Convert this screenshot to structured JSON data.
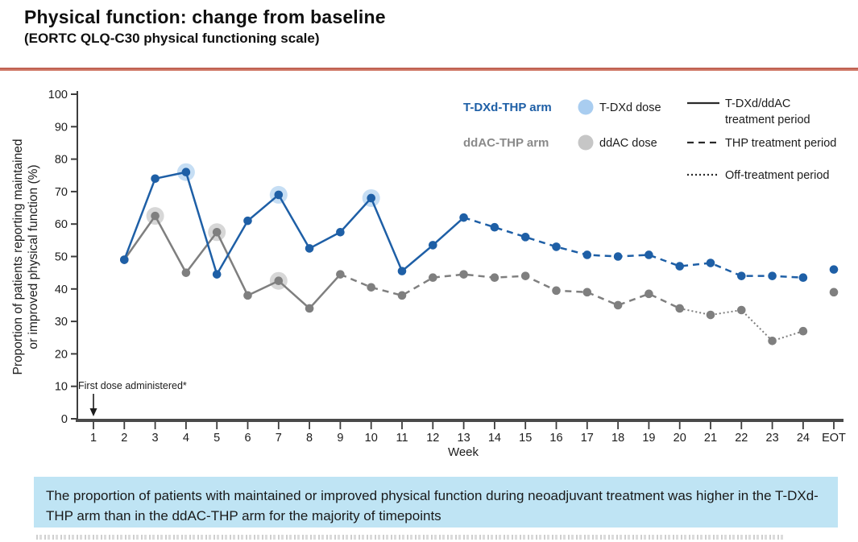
{
  "slide": {
    "title": "Physical function: change from baseline",
    "subtitle": "(EORTC QLQ-C30 physical functioning scale)",
    "accent_line_color": "#c05a49"
  },
  "legend": {
    "arms": [
      {
        "label": "T-DXd-THP arm",
        "color": "#1e5fa6",
        "dose_label": "T-DXd dose",
        "dose_color": "#a9cdf0"
      },
      {
        "label": "ddAC-THP arm",
        "color": "#8a8a8a",
        "dose_label": "ddAC dose",
        "dose_color": "#c6c6c6"
      }
    ],
    "periods": [
      {
        "style": "solid",
        "lines": [
          "T-DXd/ddAC",
          "treatment period"
        ]
      },
      {
        "style": "dashed",
        "lines": [
          "THP treatment period"
        ]
      },
      {
        "style": "dotted",
        "lines": [
          "Off-treatment period"
        ]
      }
    ]
  },
  "annotation": {
    "text": "First dose administered*",
    "week": 1
  },
  "summary_box": {
    "text": "The proportion of patients with maintained or improved physical function during neoadjuvant treatment was higher in the T-DXd-THP arm than in the ddAC-THP arm for the majority of timepoints",
    "background": "#bfe4f4"
  },
  "chart_data": {
    "type": "line",
    "xlabel": "Week",
    "ylabel": "Proportion of patients reporting maintained or improved physical function (%)",
    "ylabel_lines": [
      "Proportion of patients reporting maintained",
      "or improved physical function (%)"
    ],
    "ylim": [
      0,
      100
    ],
    "yticks": [
      0,
      10,
      20,
      30,
      40,
      50,
      60,
      70,
      80,
      90,
      100
    ],
    "x_categories": [
      "1",
      "2",
      "3",
      "4",
      "5",
      "6",
      "7",
      "8",
      "9",
      "10",
      "11",
      "12",
      "13",
      "14",
      "15",
      "16",
      "17",
      "18",
      "19",
      "20",
      "21",
      "22",
      "23",
      "24",
      "EOT"
    ],
    "series": [
      {
        "name": "T-DXd-THP arm",
        "color": "#1e5fa6",
        "halo_color": "#aed0f0",
        "weeks": [
          2,
          3,
          4,
          5,
          6,
          7,
          8,
          9,
          10,
          11,
          12,
          13,
          14,
          15,
          16,
          17,
          18,
          19,
          20,
          21,
          22,
          23,
          24
        ],
        "values": [
          49,
          74,
          76,
          44.5,
          61,
          69,
          52.5,
          57.5,
          68,
          45.5,
          53.5,
          62,
          59,
          56,
          53,
          50.5,
          50,
          50.5,
          47,
          48,
          44,
          44,
          43.5
        ],
        "eot_value": 46,
        "dose_weeks": [
          4,
          7,
          10
        ],
        "segments": [
          {
            "style": "solid",
            "from": 2,
            "to": 13
          },
          {
            "style": "dashed",
            "from": 13,
            "to": 24
          }
        ]
      },
      {
        "name": "ddAC-THP arm",
        "color": "#7f7f7f",
        "halo_color": "#c6c6c6",
        "weeks": [
          2,
          3,
          4,
          5,
          6,
          7,
          8,
          9,
          10,
          11,
          12,
          13,
          14,
          15,
          16,
          17,
          18,
          19,
          20,
          21,
          22,
          23,
          24
        ],
        "values": [
          49,
          62.5,
          45,
          57.5,
          38,
          42.5,
          34,
          44.5,
          40.5,
          38,
          43.5,
          44.5,
          43.5,
          44,
          39.5,
          39,
          35,
          38.5,
          34,
          32,
          33.5,
          24,
          27
        ],
        "eot_value": 39,
        "dose_weeks": [
          3,
          5,
          7
        ],
        "segments": [
          {
            "style": "solid",
            "from": 2,
            "to": 9
          },
          {
            "style": "dashed",
            "from": 9,
            "to": 20
          },
          {
            "style": "dotted",
            "from": 20,
            "to": 24
          }
        ]
      }
    ]
  }
}
